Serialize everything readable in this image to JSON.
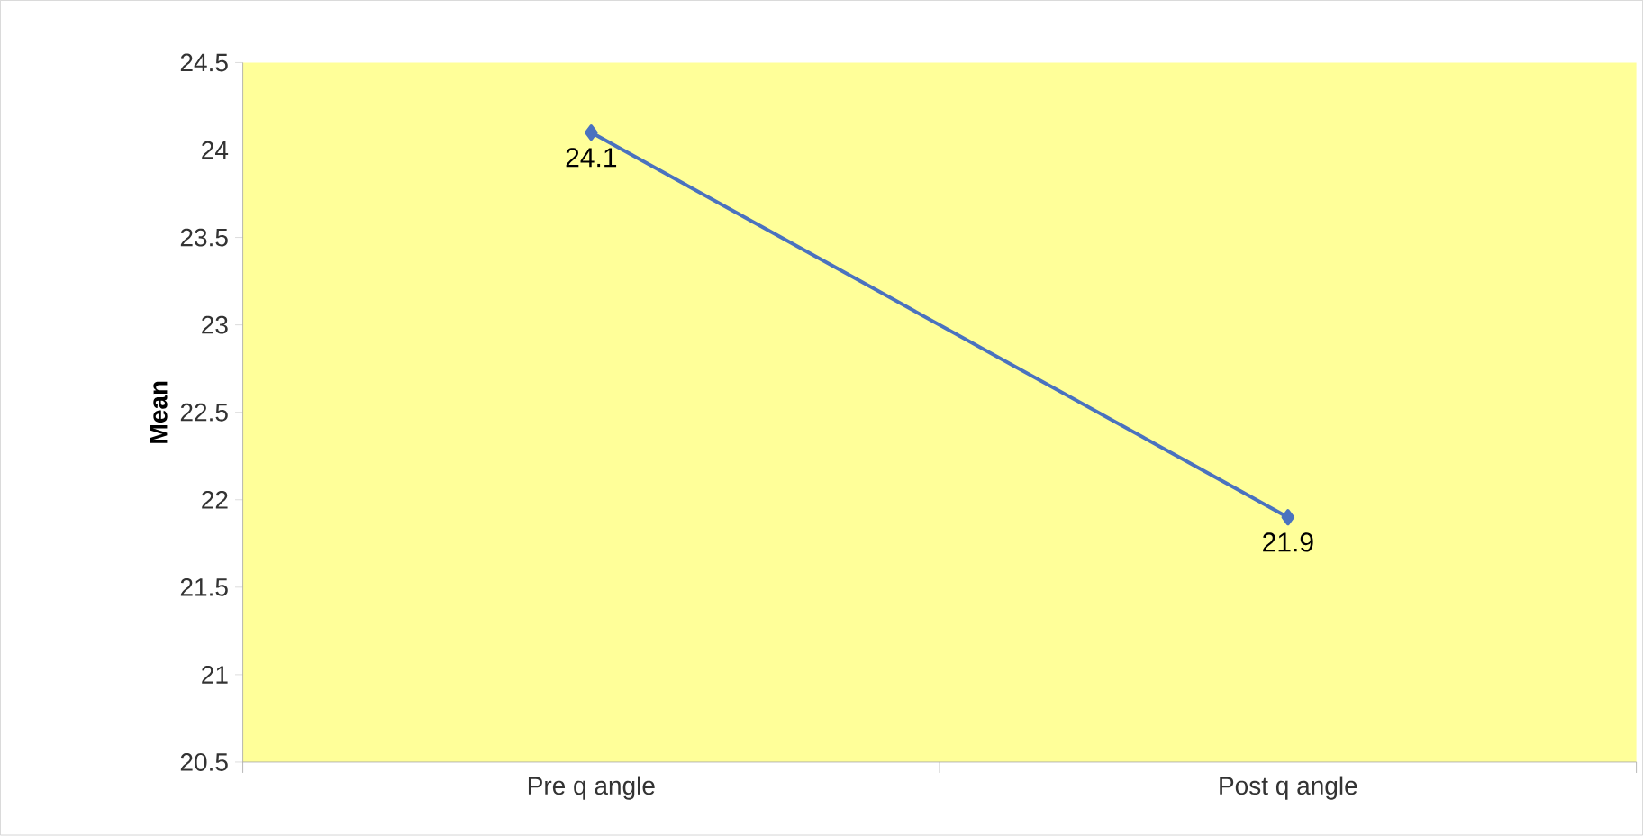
{
  "chart_data": {
    "type": "line",
    "ylabel": "Mean",
    "categories": [
      "Pre q angle",
      "Post q angle"
    ],
    "values": [
      24.1,
      21.9
    ],
    "color": "#4a72bf",
    "marker": "diamond",
    "data_labels": true,
    "ylim": [
      20.5,
      24.5
    ],
    "yticks": [
      20.5,
      21,
      21.5,
      22,
      22.5,
      23,
      23.5,
      24,
      24.5
    ],
    "grid": false
  }
}
